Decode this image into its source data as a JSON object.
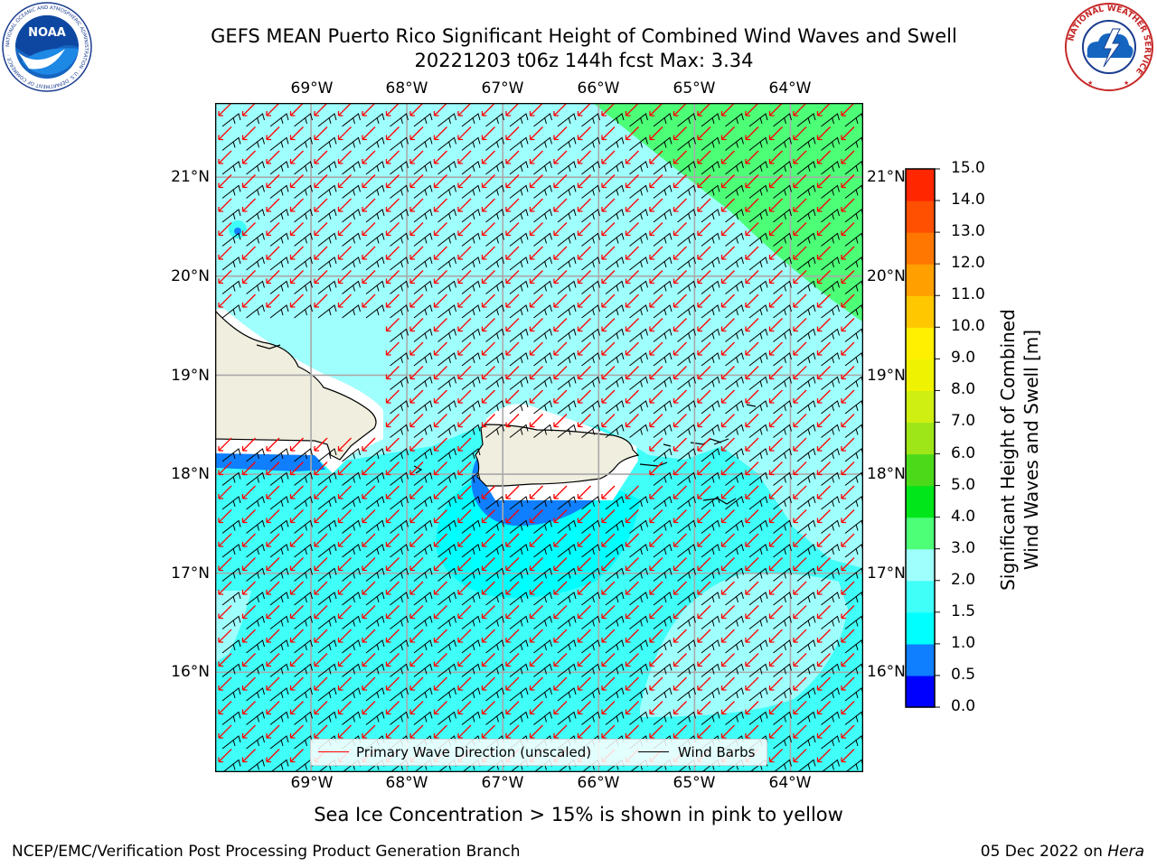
{
  "header": {
    "title_line1": "GEFS MEAN Puerto Rico Significant Height of Combined Wind Waves and Swell",
    "title_line2": "20221203 t06z 144h fcst   Max: 3.34"
  },
  "logos": {
    "noaa": {
      "text": "NOAA",
      "ring_text": "NATIONAL OCEANIC AND ATMOSPHERIC ADMINISTRATION · U.S. DEPARTMENT OF COMMERCE ·"
    },
    "nws": {
      "ring_text": "NATIONAL WEATHER SERVICE"
    }
  },
  "map": {
    "lon_labels": [
      "69°W",
      "68°W",
      "67°W",
      "66°W",
      "65°W",
      "64°W"
    ],
    "lat_labels": [
      "21°N",
      "20°N",
      "19°N",
      "18°N",
      "17°N",
      "16°N"
    ],
    "lon_range": [
      -70.0,
      -63.25
    ],
    "lat_range": [
      15.0,
      21.75
    ],
    "gridlines": true,
    "max_value": 3.34
  },
  "colorbar": {
    "title_line1": "Significant Height of Combined",
    "title_line2": "Wind Waves and Swell [m]",
    "ticks": [
      "0.0",
      "0.5",
      "1.0",
      "1.5",
      "2.0",
      "3.0",
      "4.0",
      "5.0",
      "6.0",
      "7.0",
      "8.0",
      "9.0",
      "10.0",
      "11.0",
      "12.0",
      "13.0",
      "14.0",
      "15.0"
    ],
    "colors": [
      "#0000ff",
      "#0f7fff",
      "#00ffff",
      "#3ffff8",
      "#9ffffd",
      "#4cff77",
      "#00e61a",
      "#4cd91a",
      "#9fe619",
      "#cfef12",
      "#eff200",
      "#ffef00",
      "#ffc700",
      "#ff9f00",
      "#ff7700",
      "#ff4f00",
      "#ff2600"
    ]
  },
  "legend": {
    "wave_direction_label": "Primary Wave Direction (unscaled)",
    "wind_barbs_label": "Wind Barbs",
    "wave_color": "#ff0000",
    "barb_color": "#000000"
  },
  "note": "Sea Ice Concentration > 15% is shown in pink to yellow",
  "footer": {
    "left": "NCEP/EMC/Verification Post Processing Product Generation Branch",
    "date": "05 Dec 2022 on",
    "machine": "Hera"
  }
}
